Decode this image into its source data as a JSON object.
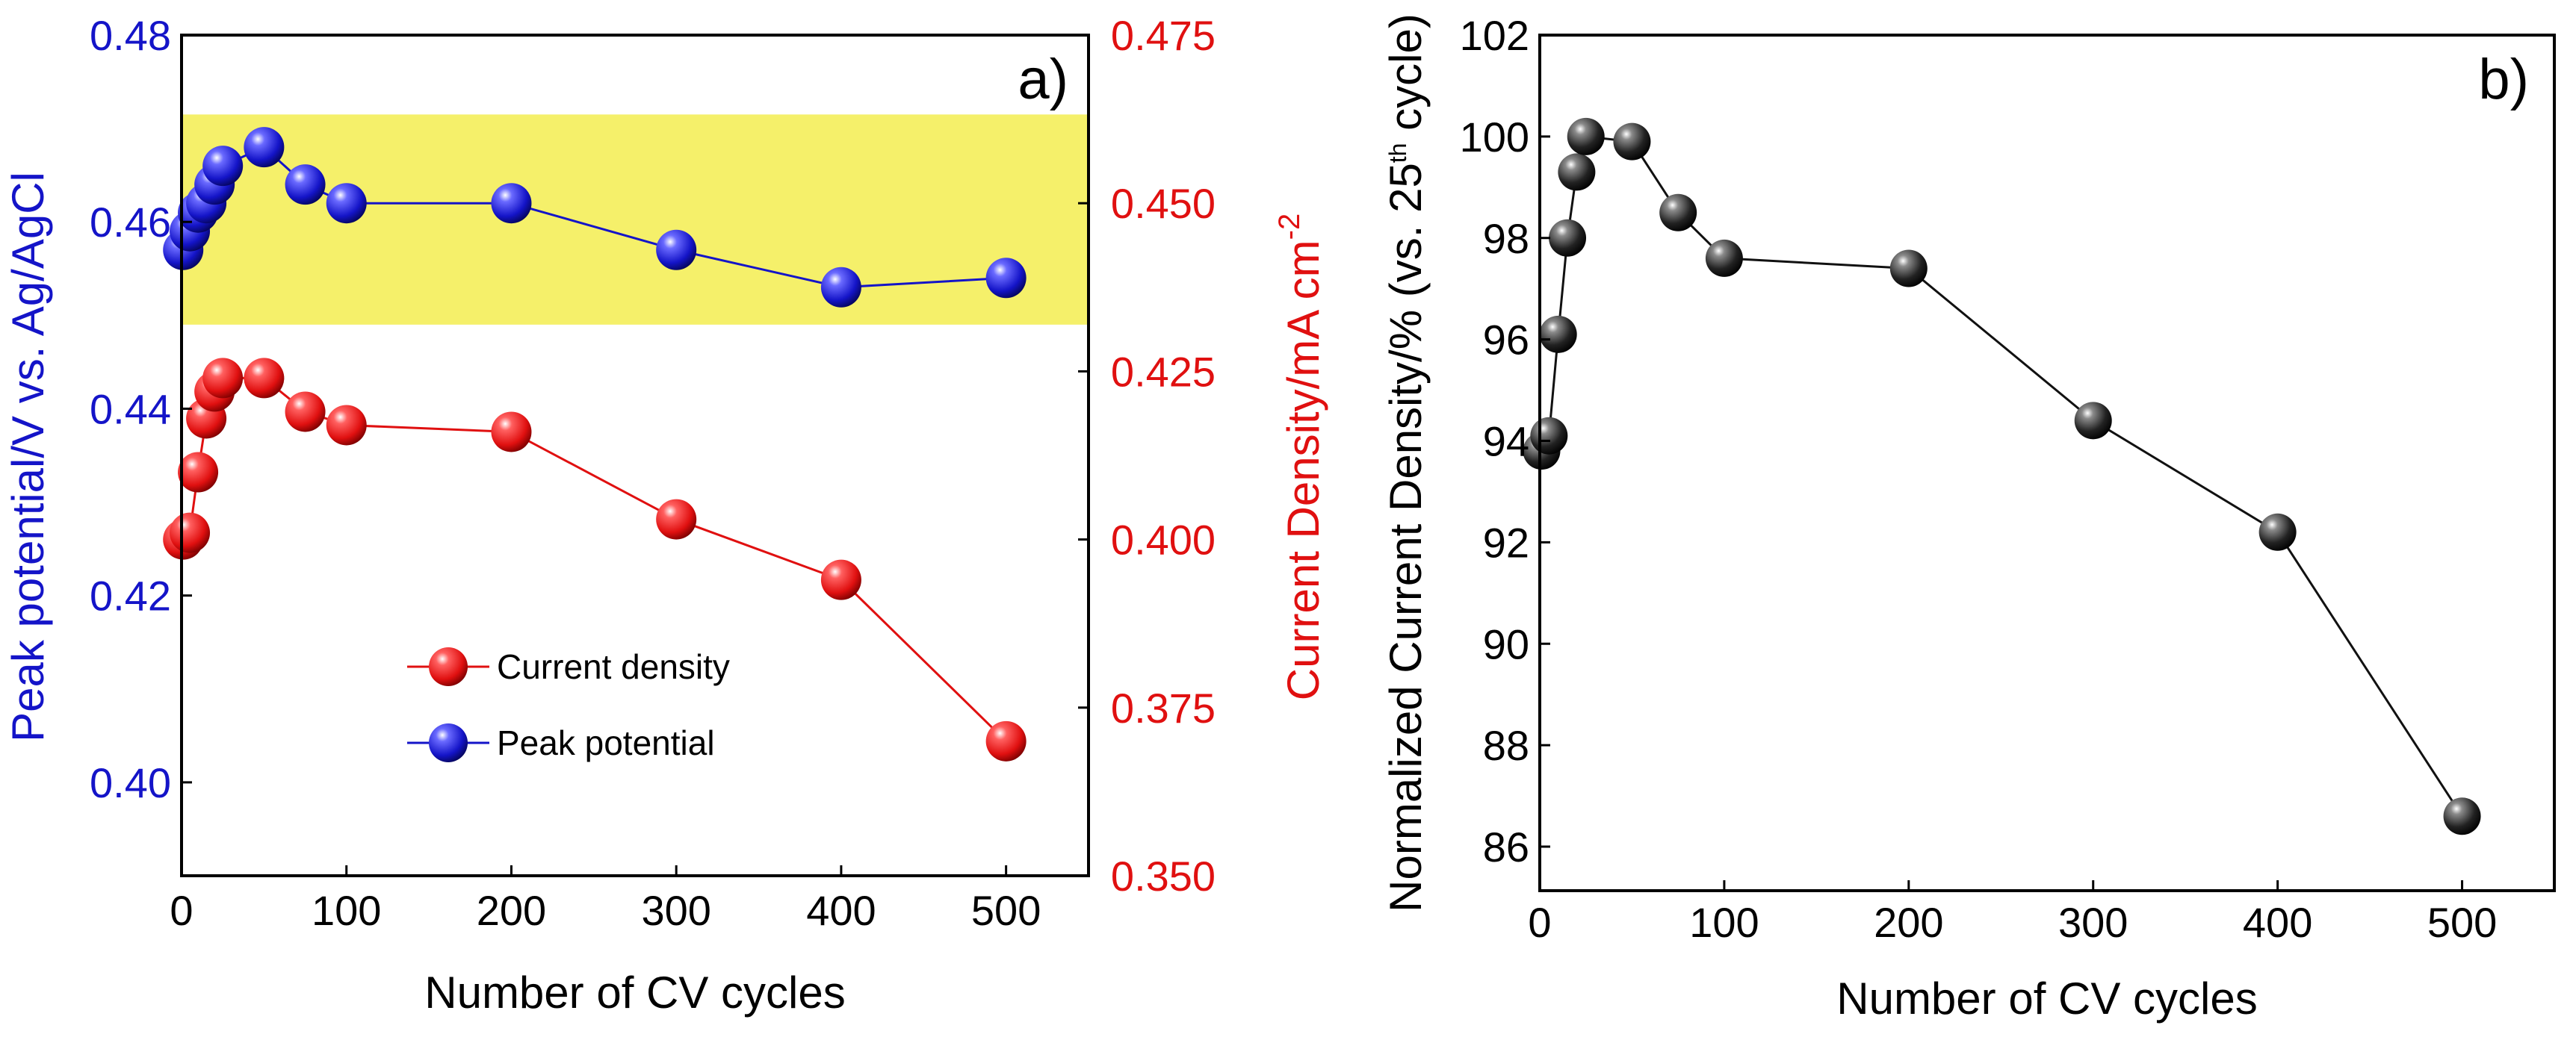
{
  "chart_data": [
    {
      "panel": "a)",
      "type": "scatter",
      "xlabel": "Number of CV cycles",
      "xlim": [
        0,
        550
      ],
      "xticks": [
        0,
        100,
        200,
        300,
        400,
        500
      ],
      "ylabel_left": "Peak potential/V vs. Ag/AgCl",
      "ylim_left": [
        0.39,
        0.48
      ],
      "yticks_left": [
        "0.40",
        "0.42",
        "0.44",
        "0.46",
        "0.48"
      ],
      "ylabel_right": "Current Density/mA cm",
      "ylabel_right_superscript": "-2",
      "ylim_right": [
        0.35,
        0.475
      ],
      "yticks_right": [
        "0.350",
        "0.375",
        "0.400",
        "0.425",
        "0.450",
        "0.475"
      ],
      "highlight_band_left_axis": [
        0.449,
        0.4715
      ],
      "highlight_color": "#f5f06a",
      "legend": {
        "placement": "lower-center",
        "items": [
          {
            "label": "Current density",
            "color": "#e01010"
          },
          {
            "label": "Peak potential",
            "color": "#1414c8"
          }
        ]
      },
      "series": [
        {
          "name": "Current density",
          "axis": "right",
          "color": "#e01010",
          "x": [
            1,
            5,
            10,
            15,
            20,
            25,
            50,
            75,
            100,
            200,
            300,
            400,
            500
          ],
          "y": [
            0.4,
            0.401,
            0.41,
            0.418,
            0.422,
            0.424,
            0.424,
            0.419,
            0.417,
            0.416,
            0.403,
            0.394,
            0.37
          ]
        },
        {
          "name": "Peak potential",
          "axis": "left",
          "color": "#1414c8",
          "x": [
            1,
            5,
            10,
            15,
            20,
            25,
            50,
            75,
            100,
            200,
            300,
            400,
            500
          ],
          "y": [
            0.457,
            0.459,
            0.461,
            0.462,
            0.464,
            0.466,
            0.468,
            0.464,
            0.462,
            0.462,
            0.457,
            0.453,
            0.454
          ]
        }
      ]
    },
    {
      "panel": "b)",
      "type": "scatter",
      "xlabel": "Number of CV cycles",
      "xlim": [
        0,
        550
      ],
      "xticks": [
        0,
        100,
        200,
        300,
        400,
        500
      ],
      "ylabel_parts": [
        "Normalized Current Density/% (vs. 25",
        "th",
        " cycle)"
      ],
      "ylim": [
        86,
        102
      ],
      "yticks": [
        86,
        88,
        90,
        92,
        94,
        96,
        98,
        100,
        102
      ],
      "series": [
        {
          "name": "Normalized current density",
          "color": "#111111",
          "x": [
            1,
            5,
            10,
            15,
            20,
            25,
            50,
            75,
            100,
            200,
            300,
            400,
            500
          ],
          "y": [
            93.8,
            94.1,
            96.1,
            98.0,
            99.3,
            100.0,
            99.9,
            98.5,
            97.6,
            97.4,
            94.4,
            92.2,
            86.6
          ]
        }
      ]
    }
  ]
}
